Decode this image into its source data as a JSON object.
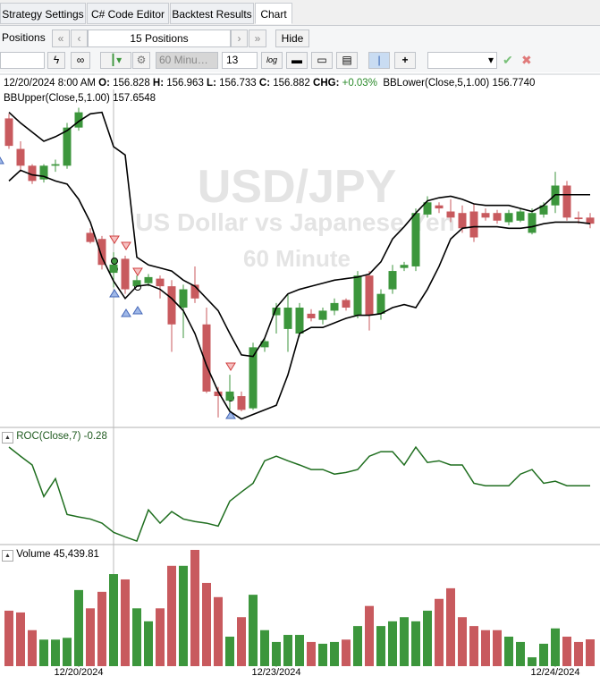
{
  "tabs": [
    "Strategy Settings",
    "C# Code Editor",
    "Backtest Results",
    "Chart"
  ],
  "toolbar": {
    "positions_label": "Positions",
    "positions_count": "15 Positions",
    "hide": "Hide",
    "interval": "60 Minu",
    "bars": "13",
    "log": "log"
  },
  "chart_data": {
    "type": "candlestick",
    "watermark": [
      "USD/JPY",
      "US Dollar vs Japanese Yen",
      "60 Minute"
    ],
    "crosshair": {
      "date": "12/20/2024 8:00 AM",
      "index": 9,
      "o_label": "O:",
      "h_label": "H:",
      "l_label": "L:",
      "c_label": "C:",
      "chg_label": "CHG:",
      "chg": "+0.03%"
    },
    "categories": [
      null,
      null,
      null,
      null,
      null,
      null,
      "12/20/2024",
      null,
      null,
      null,
      null,
      null,
      null,
      null,
      null,
      null,
      null,
      null,
      null,
      null,
      null,
      null,
      null,
      "12/23/2024",
      null,
      null,
      null,
      null,
      null,
      null,
      null,
      null,
      null,
      null,
      null,
      null,
      null,
      null,
      null,
      null,
      null,
      null,
      null,
      null,
      null,
      null,
      null,
      "12/24/2024",
      null,
      null,
      null
    ],
    "ylim": [
      155.85,
      158.03
    ],
    "up_color": "#3c963c",
    "down_color": "#c85a5e",
    "ohlc": [
      [
        157.84,
        157.87,
        157.64,
        157.66
      ],
      [
        157.64,
        157.69,
        157.49,
        157.53
      ],
      [
        157.53,
        157.54,
        157.41,
        157.43
      ],
      [
        157.44,
        157.54,
        157.42,
        157.53
      ],
      [
        157.53,
        157.57,
        157.49,
        157.54
      ],
      [
        157.53,
        157.81,
        157.51,
        157.78
      ],
      [
        157.78,
        157.91,
        157.76,
        157.88
      ],
      [
        157.09,
        157.12,
        157.02,
        157.03
      ],
      [
        157.05,
        157.07,
        156.85,
        156.88
      ],
      [
        156.828,
        156.963,
        156.733,
        156.882
      ],
      [
        156.92,
        156.94,
        156.69,
        156.72
      ],
      [
        156.74,
        156.81,
        156.72,
        156.78
      ],
      [
        156.76,
        156.82,
        156.74,
        156.8
      ],
      [
        156.79,
        156.81,
        156.66,
        156.74
      ],
      [
        156.74,
        156.78,
        156.31,
        156.49
      ],
      [
        156.6,
        156.75,
        156.4,
        156.72
      ],
      [
        156.75,
        156.87,
        156.63,
        156.66
      ],
      [
        156.49,
        156.6,
        156.04,
        156.05
      ],
      [
        156.05,
        156.08,
        155.88,
        156.02
      ],
      [
        155.99,
        156.16,
        155.93,
        156.05
      ],
      [
        156.02,
        156.05,
        155.92,
        155.93
      ],
      [
        155.94,
        156.37,
        155.93,
        156.34
      ],
      [
        156.34,
        156.4,
        156.31,
        156.38
      ],
      [
        156.55,
        156.63,
        156.43,
        156.6
      ],
      [
        156.46,
        156.69,
        156.31,
        156.6
      ],
      [
        156.43,
        156.63,
        156.41,
        156.6
      ],
      [
        156.56,
        156.59,
        156.51,
        156.53
      ],
      [
        156.52,
        156.6,
        156.49,
        156.58
      ],
      [
        156.58,
        156.66,
        156.55,
        156.63
      ],
      [
        156.65,
        156.66,
        156.58,
        156.6
      ],
      [
        156.55,
        156.84,
        156.53,
        156.81
      ],
      [
        156.81,
        156.84,
        156.45,
        156.55
      ],
      [
        156.56,
        156.72,
        156.52,
        156.69
      ],
      [
        156.72,
        156.88,
        156.69,
        156.84
      ],
      [
        156.86,
        156.9,
        156.84,
        156.88
      ],
      [
        156.87,
        157.25,
        156.84,
        157.22
      ],
      [
        157.21,
        157.33,
        157.19,
        157.29
      ],
      [
        157.27,
        157.29,
        157.22,
        157.25
      ],
      [
        157.23,
        157.31,
        157.16,
        157.19
      ],
      [
        157.22,
        157.27,
        157.09,
        157.12
      ],
      [
        157.23,
        157.28,
        157.03,
        157.06
      ],
      [
        157.22,
        157.25,
        157.17,
        157.19
      ],
      [
        157.22,
        157.24,
        157.15,
        157.17
      ],
      [
        157.16,
        157.24,
        157.14,
        157.22
      ],
      [
        157.17,
        157.25,
        157.16,
        157.23
      ],
      [
        157.09,
        157.25,
        157.08,
        157.22
      ],
      [
        157.21,
        157.29,
        157.19,
        157.27
      ],
      [
        157.27,
        157.49,
        157.22,
        157.4
      ],
      [
        157.4,
        157.43,
        157.17,
        157.19
      ],
      [
        157.19,
        157.23,
        157.15,
        157.18
      ],
      [
        157.19,
        157.22,
        157.12,
        157.15
      ]
    ],
    "series": [
      {
        "name": "BBLower(Close,5,1.00)",
        "readout_label": "156.7740",
        "color": "#000000",
        "values": [
          157.43,
          157.5,
          157.47,
          157.46,
          157.43,
          157.41,
          157.31,
          157.16,
          156.93,
          156.774,
          156.66,
          156.74,
          156.75,
          156.72,
          156.66,
          156.58,
          156.43,
          156.22,
          156.05,
          155.92,
          155.87,
          155.9,
          155.93,
          155.96,
          156.16,
          156.43,
          156.47,
          156.47,
          156.5,
          156.53,
          156.55,
          156.55,
          156.56,
          156.6,
          156.62,
          156.6,
          156.72,
          156.87,
          157.05,
          157.12,
          157.13,
          157.13,
          157.13,
          157.12,
          157.12,
          157.13,
          157.15,
          157.16,
          157.16,
          157.16,
          157.15
        ]
      },
      {
        "name": "BBUpper(Close,5,1.00)",
        "readout_label": "157.6548",
        "color": "#000000",
        "values": [
          157.88,
          157.81,
          157.75,
          157.69,
          157.72,
          157.76,
          157.82,
          157.87,
          157.88,
          157.6548,
          157.6,
          156.93,
          156.88,
          156.86,
          156.84,
          156.78,
          156.74,
          156.66,
          156.58,
          156.43,
          156.29,
          156.28,
          156.4,
          156.6,
          156.69,
          156.72,
          156.74,
          156.76,
          156.78,
          156.79,
          156.8,
          156.82,
          156.9,
          157.05,
          157.13,
          157.22,
          157.3,
          157.32,
          157.33,
          157.31,
          157.28,
          157.27,
          157.27,
          157.27,
          157.25,
          157.23,
          157.27,
          157.34,
          157.34,
          157.34,
          157.34
        ]
      }
    ],
    "roc": {
      "name": "ROC(Close,7)",
      "color": "#1f6e1f",
      "ylim": [
        -1.63,
        1.08
      ],
      "values": [
        0.65,
        0.43,
        0.22,
        -0.54,
        -0.11,
        -0.97,
        -1.03,
        -1.08,
        -1.18,
        -1.4,
        -1.51,
        -1.61,
        -0.86,
        -1.18,
        -0.9,
        -1.08,
        -1.14,
        -1.18,
        -1.25,
        -0.65,
        -0.43,
        -0.22,
        0.32,
        0.43,
        0.32,
        0.22,
        0.11,
        0.11,
        0,
        0.04,
        0.11,
        0.43,
        0.54,
        0.54,
        0.22,
        0.65,
        0.28,
        0.32,
        0.22,
        0.22,
        -0.22,
        -0.28,
        -0.28,
        -0.28,
        0,
        0.11,
        -0.22,
        -0.17,
        -0.28,
        -0.28,
        -0.28
      ]
    },
    "volume": {
      "name": "Volume",
      "readout_label": "45,439.81",
      "ylim": [
        0,
        201500
      ],
      "values": [
        94000,
        91000,
        61000,
        45000,
        45000,
        48000,
        129000,
        98000,
        126000,
        156000,
        147000,
        98000,
        76000,
        98000,
        170000,
        170000,
        197000,
        141000,
        117000,
        50000,
        83000,
        121000,
        61000,
        41000,
        53000,
        53000,
        41000,
        38000,
        41000,
        45000,
        68000,
        102000,
        68000,
        76000,
        83000,
        76000,
        94000,
        114000,
        132000,
        83000,
        68000,
        61000,
        61000,
        50000,
        41000,
        15000,
        38000,
        64000,
        50000,
        41000,
        45439.81
      ]
    }
  }
}
